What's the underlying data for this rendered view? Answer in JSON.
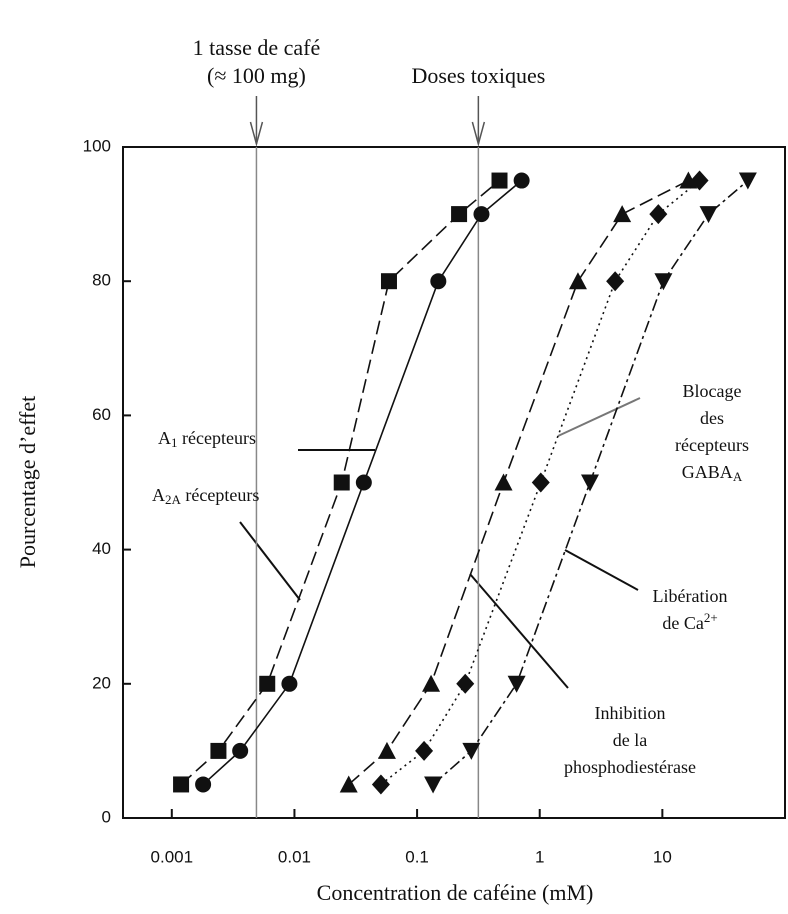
{
  "chart_data": {
    "type": "scatter",
    "xlabel": "Concentration de caféine (mM)",
    "ylabel": "Pourcentage d’effet",
    "xscale": "log",
    "xlim": [
      0.0004,
      100
    ],
    "ylim": [
      0,
      100
    ],
    "xticks": [
      0.001,
      0.01,
      0.1,
      1,
      10
    ],
    "yticks": [
      0,
      20,
      40,
      60,
      80,
      100
    ],
    "vlines": [
      {
        "x": 0.0049,
        "label": [
          "1 tasse de café",
          "(≈ 100 mg)"
        ]
      },
      {
        "x": 0.316,
        "label": [
          "Doses toxiques"
        ]
      }
    ],
    "series": [
      {
        "marker": "square",
        "dash": "dashed",
        "color": "#111",
        "x": [
          0.00119,
          0.0024,
          0.006,
          0.0243,
          0.059,
          0.22,
          0.47
        ],
        "values": [
          5,
          10,
          20,
          50,
          80,
          90,
          95
        ]
      },
      {
        "marker": "circle",
        "dash": "solid",
        "color": "#111",
        "x": [
          0.0018,
          0.00361,
          0.0091,
          0.0368,
          0.149,
          0.335,
          0.712
        ],
        "values": [
          5,
          10,
          20,
          50,
          80,
          90,
          95
        ]
      },
      {
        "marker": "triangle",
        "dash": "dashed",
        "color": "#111",
        "x": [
          0.0277,
          0.0568,
          0.13,
          0.507,
          2.05,
          4.7,
          16.3
        ],
        "values": [
          5,
          10,
          20,
          50,
          80,
          90,
          95
        ]
      },
      {
        "marker": "diamond",
        "dash": "dotted",
        "color": "#111",
        "x": [
          0.0507,
          0.114,
          0.247,
          1.02,
          4.12,
          9.27,
          20.1
        ],
        "values": [
          5,
          10,
          20,
          50,
          80,
          90,
          95
        ]
      },
      {
        "marker": "triangle-down",
        "dash": "dashdot",
        "color": "#111",
        "x": [
          0.135,
          0.277,
          0.648,
          2.57,
          10.2,
          23.8,
          49.8
        ],
        "values": [
          5,
          10,
          20,
          50,
          80,
          90,
          95
        ]
      }
    ],
    "annotations": [
      {
        "lines": [
          [
            {
              "text": "A"
            },
            {
              "text": "1",
              "style": "sub"
            },
            {
              "text": " récepteurs"
            }
          ]
        ]
      },
      {
        "lines": [
          [
            {
              "text": "A"
            },
            {
              "text": "2A",
              "style": "sub"
            },
            {
              "text": " récepteurs"
            }
          ]
        ]
      },
      {
        "lines": [
          [
            {
              "text": "Blocage"
            }
          ],
          [
            {
              "text": "des"
            }
          ],
          [
            {
              "text": "récepteurs"
            }
          ],
          [
            {
              "text": "GABA"
            },
            {
              "text": "A",
              "style": "sub"
            }
          ]
        ]
      },
      {
        "lines": [
          [
            {
              "text": "Libération"
            }
          ],
          [
            {
              "text": "de Ca"
            },
            {
              "text": "2+",
              "style": "sup"
            }
          ]
        ]
      },
      {
        "lines": [
          [
            {
              "text": "Inhibition"
            }
          ],
          [
            {
              "text": "de la"
            }
          ],
          [
            {
              "text": "phosphodiestérase"
            }
          ]
        ]
      }
    ]
  }
}
